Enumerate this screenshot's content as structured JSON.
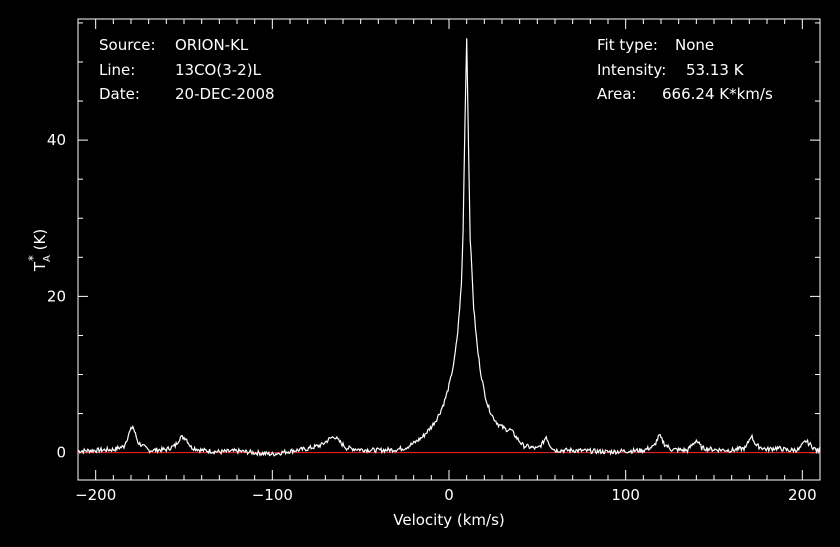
{
  "info": {
    "source_label": "Source:",
    "source_value": "ORION-KL",
    "line_label": "Line:",
    "line_value": "13CO(3-2)L",
    "date_label": "Date:",
    "date_value": "20-DEC-2008",
    "fit_label": "Fit type:",
    "fit_value": "None",
    "intensity_label": "Intensity:",
    "intensity_value": "53.13 K",
    "area_label": "Area:",
    "area_value": "666.24 K*km/s"
  },
  "colors": {
    "background": "#000000",
    "foreground": "#ffffff",
    "baseline": "#ff2020"
  },
  "chart_data": {
    "type": "line",
    "xlabel": "Velocity (km/s)",
    "ylabel_main": "T",
    "ylabel_sup": "*",
    "ylabel_sub": "A",
    "ylabel_unit": " (K)",
    "xlim": [
      -210,
      210
    ],
    "ylim": [
      -3.5,
      55.5
    ],
    "x_ticks": [
      -200,
      -100,
      0,
      100,
      200
    ],
    "x_tick_labels": [
      "−200",
      "−100",
      "0",
      "100",
      "200"
    ],
    "y_ticks": [
      0,
      20,
      40
    ],
    "y_tick_labels": [
      "0",
      "20",
      "40"
    ],
    "baseline_value": 0,
    "series": [
      {
        "x": [
          -210,
          -200,
          -190,
          -184,
          -181,
          -179,
          -176,
          -170,
          -160,
          -155,
          -152,
          -149,
          -146,
          -140,
          -130,
          -120,
          -110,
          -100,
          -90,
          -80,
          -72,
          -68,
          -65,
          -62,
          -58,
          -50,
          -40,
          -30,
          -25,
          -20,
          -15,
          -10,
          -7,
          -5,
          -3,
          -1,
          1,
          3,
          5,
          7,
          8,
          9,
          10,
          11,
          12,
          14,
          16,
          18,
          20,
          22,
          25,
          28,
          32,
          35,
          38,
          42,
          50,
          53,
          55,
          57,
          60,
          70,
          80,
          90,
          100,
          110,
          116,
          119,
          122,
          126,
          135,
          140,
          143,
          150,
          160,
          168,
          171,
          174,
          180,
          185,
          188,
          192,
          198,
          202,
          205,
          208,
          210
        ],
        "y": [
          0.2,
          0.3,
          0.4,
          0.8,
          2.5,
          3.4,
          1.3,
          0.3,
          0.4,
          0.9,
          2.0,
          1.9,
          0.7,
          0.3,
          0.1,
          0.2,
          0.0,
          -0.2,
          0.2,
          0.5,
          1.0,
          1.7,
          2.1,
          1.4,
          0.6,
          0.4,
          0.3,
          0.4,
          0.6,
          1.2,
          2.0,
          3.3,
          4.3,
          5.2,
          6.3,
          7.7,
          9.5,
          11.8,
          15.5,
          21.5,
          28.5,
          42.0,
          53.1,
          40.0,
          27.5,
          18.5,
          13.5,
          10.2,
          7.8,
          6.0,
          4.5,
          3.6,
          3.0,
          2.9,
          2.0,
          0.9,
          0.5,
          1.2,
          2.1,
          1.0,
          0.3,
          0.3,
          0.2,
          0.1,
          0.2,
          0.3,
          0.8,
          2.2,
          1.1,
          0.4,
          0.3,
          1.6,
          0.6,
          0.4,
          0.3,
          0.6,
          2.2,
          0.9,
          0.4,
          0.6,
          0.5,
          0.3,
          0.4,
          1.5,
          0.9,
          0.3,
          0.2
        ]
      }
    ]
  }
}
